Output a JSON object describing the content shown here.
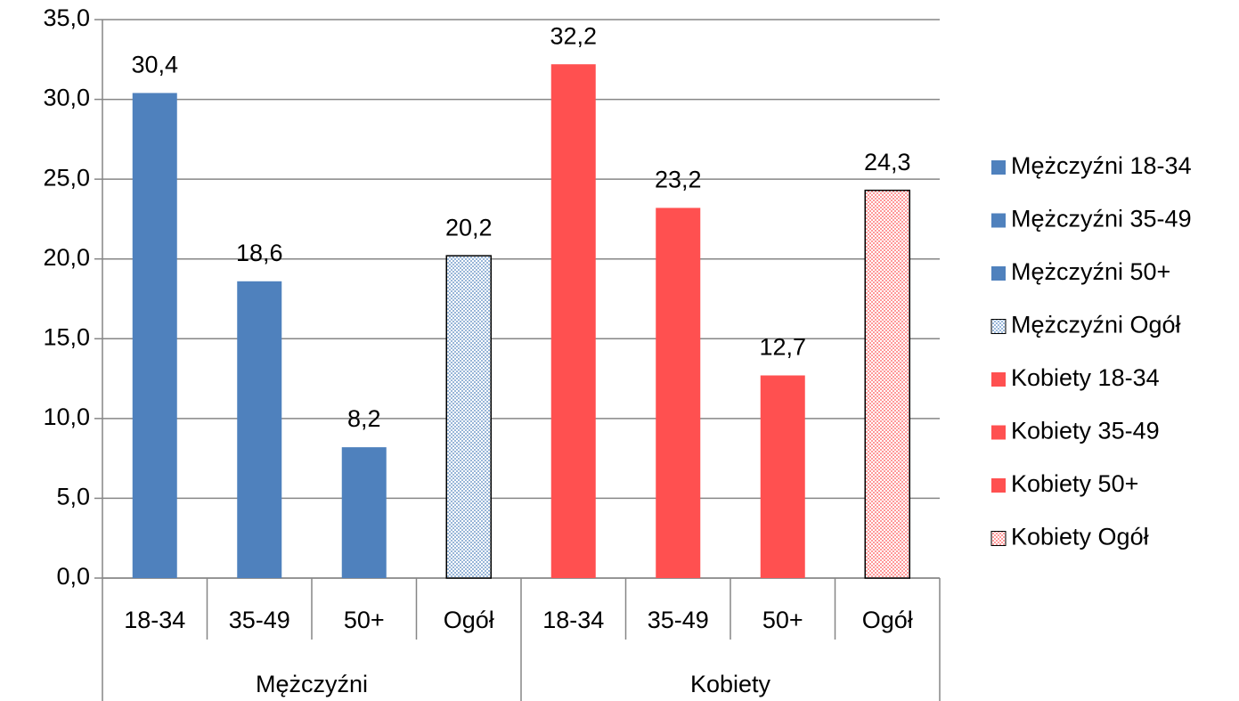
{
  "chart_data": {
    "type": "bar",
    "groups": [
      {
        "name": "Mężczyźni",
        "categories": [
          "18-34",
          "35-49",
          "50+",
          "Ogół"
        ]
      },
      {
        "name": "Kobiety",
        "categories": [
          "18-34",
          "35-49",
          "50+",
          "Ogół"
        ]
      }
    ],
    "series": [
      {
        "name": "Mężczyźni 18-34",
        "color": "#4f81bd",
        "values": [
          30.4,
          null,
          null,
          null,
          null,
          null,
          null,
          null
        ],
        "value_labels": [
          "30,4",
          null,
          null,
          null,
          null,
          null,
          null,
          null
        ]
      },
      {
        "name": "Mężczyźni 35-49",
        "color": "#4f81bd",
        "values": [
          null,
          18.6,
          null,
          null,
          null,
          null,
          null,
          null
        ],
        "value_labels": [
          null,
          "18,6",
          null,
          null,
          null,
          null,
          null,
          null
        ]
      },
      {
        "name": "Mężczyźni 50+",
        "color": "#4f81bd",
        "values": [
          null,
          null,
          8.2,
          null,
          null,
          null,
          null,
          null
        ],
        "value_labels": [
          null,
          null,
          "8,2",
          null,
          null,
          null,
          null,
          null
        ]
      },
      {
        "name": "Mężczyźni Ogół",
        "color": "#4f81bd",
        "pattern": "dots",
        "values": [
          null,
          null,
          null,
          20.2,
          null,
          null,
          null,
          null
        ],
        "value_labels": [
          null,
          null,
          null,
          "20,2",
          null,
          null,
          null,
          null
        ]
      },
      {
        "name": "Kobiety 18-34",
        "color": "#ff5050",
        "values": [
          null,
          null,
          null,
          null,
          32.2,
          null,
          null,
          null
        ],
        "value_labels": [
          null,
          null,
          null,
          null,
          "32,2",
          null,
          null,
          null
        ]
      },
      {
        "name": "Kobiety 35-49",
        "color": "#ff5050",
        "values": [
          null,
          null,
          null,
          null,
          null,
          23.2,
          null,
          null
        ],
        "value_labels": [
          null,
          null,
          null,
          null,
          null,
          "23,2",
          null,
          null
        ]
      },
      {
        "name": "Kobiety 50+",
        "color": "#ff5050",
        "values": [
          null,
          null,
          null,
          null,
          null,
          null,
          12.7,
          null
        ],
        "value_labels": [
          null,
          null,
          null,
          null,
          null,
          null,
          "12,7",
          null
        ]
      },
      {
        "name": "Kobiety Ogół",
        "color": "#ff5050",
        "pattern": "dots",
        "values": [
          null,
          null,
          null,
          null,
          null,
          null,
          null,
          24.3
        ],
        "value_labels": [
          null,
          null,
          null,
          null,
          null,
          null,
          null,
          "24,3"
        ]
      }
    ],
    "ylim": [
      0,
      35
    ],
    "yticks": [
      {
        "value": 0,
        "label": "0,0"
      },
      {
        "value": 5,
        "label": "5,0"
      },
      {
        "value": 10,
        "label": "10,0"
      },
      {
        "value": 15,
        "label": "15,0"
      },
      {
        "value": 20,
        "label": "20,0"
      },
      {
        "value": 25,
        "label": "25,0"
      },
      {
        "value": 30,
        "label": "30,0"
      },
      {
        "value": 35,
        "label": "35,0"
      }
    ],
    "grid": true,
    "legend": "right"
  }
}
